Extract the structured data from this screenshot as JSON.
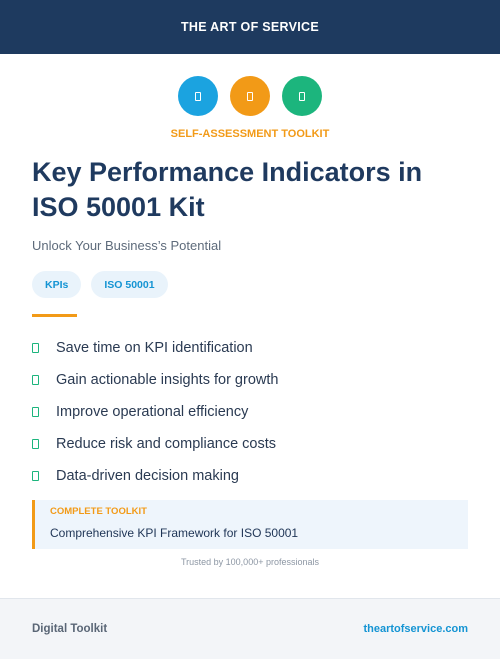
{
  "header": {
    "brand": "THE ART OF SERVICE"
  },
  "icons": [
    {
      "name": "document-icon",
      "color": "#1ba3e0"
    },
    {
      "name": "document-icon",
      "color": "#f29a17"
    },
    {
      "name": "document-icon",
      "color": "#1cb57d"
    }
  ],
  "eyebrow": "SELF-ASSESSMENT TOOLKIT",
  "title": "Key Performance Indicators in ISO 50001 Kit",
  "subtitle": "Unlock Your Business’s Potential",
  "tags": [
    "KPIs",
    "ISO 50001"
  ],
  "features": [
    "Save time on KPI identification",
    "Gain actionable insights for growth",
    "Improve operational efficiency",
    "Reduce risk and compliance costs",
    "Data-driven decision making"
  ],
  "callout": {
    "label": "COMPLETE TOOLKIT",
    "text": "Comprehensive KPI Framework for ISO 50001"
  },
  "trusted": "Trusted by 100,000+ professionals",
  "footer": {
    "left": "Digital Toolkit",
    "right": "theartofservice.com"
  },
  "colors": {
    "navy": "#1e3a5f",
    "accent_orange": "#f29a17",
    "accent_blue": "#1ba3e0",
    "accent_green": "#1cb57d"
  }
}
